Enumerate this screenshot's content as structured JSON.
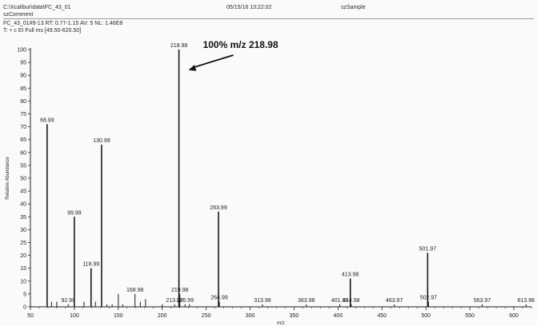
{
  "header": {
    "file_path": "C:\\Xcalibur\\data\\FC_43_01",
    "date_time": "05/15/16 13:22:02",
    "sample": "szSample",
    "comment": "szComment",
    "scan_info": "FC_43_01#9-13  RT: 0.77-1.15  AV: 5  NL: 1.46E8",
    "filter": "T: + c EI Full ms [49.50-620.50]"
  },
  "chart_data": {
    "type": "bar",
    "title": "",
    "xlabel": "m/z",
    "ylabel": "Relative Abundance",
    "xlim": [
      50,
      620
    ],
    "ylim": [
      0,
      100
    ],
    "x_ticks": [
      50,
      100,
      150,
      200,
      250,
      300,
      350,
      400,
      450,
      500,
      550,
      600
    ],
    "y_ticks": [
      0,
      5,
      10,
      15,
      20,
      25,
      30,
      35,
      40,
      45,
      50,
      55,
      60,
      65,
      70,
      75,
      80,
      85,
      90,
      95,
      100
    ],
    "annotation": "100% m/z 218.98",
    "peaks": [
      {
        "mz": 68.99,
        "intensity": 71,
        "label": "68.99"
      },
      {
        "mz": 74.0,
        "intensity": 2,
        "label": ""
      },
      {
        "mz": 80.0,
        "intensity": 2,
        "label": ""
      },
      {
        "mz": 92.99,
        "intensity": 1,
        "label": "92.99"
      },
      {
        "mz": 99.99,
        "intensity": 35,
        "label": "99.99"
      },
      {
        "mz": 111.0,
        "intensity": 2,
        "label": ""
      },
      {
        "mz": 118.99,
        "intensity": 15,
        "label": "118.99"
      },
      {
        "mz": 124.0,
        "intensity": 2,
        "label": ""
      },
      {
        "mz": 130.99,
        "intensity": 63,
        "label": "130.99"
      },
      {
        "mz": 137.0,
        "intensity": 1,
        "label": ""
      },
      {
        "mz": 143.0,
        "intensity": 1,
        "label": ""
      },
      {
        "mz": 150.0,
        "intensity": 5,
        "label": ""
      },
      {
        "mz": 155.0,
        "intensity": 1,
        "label": ""
      },
      {
        "mz": 168.98,
        "intensity": 5,
        "label": "168.98"
      },
      {
        "mz": 175.0,
        "intensity": 2,
        "label": ""
      },
      {
        "mz": 181.0,
        "intensity": 3,
        "label": ""
      },
      {
        "mz": 200.0,
        "intensity": 1,
        "label": ""
      },
      {
        "mz": 213.98,
        "intensity": 1,
        "label": "213.98"
      },
      {
        "mz": 218.98,
        "intensity": 100,
        "label": "218.98"
      },
      {
        "mz": 219.98,
        "intensity": 5,
        "label": "219.98"
      },
      {
        "mz": 225.99,
        "intensity": 1,
        "label": "225.99"
      },
      {
        "mz": 231.0,
        "intensity": 1,
        "label": ""
      },
      {
        "mz": 263.99,
        "intensity": 37,
        "label": "263.99"
      },
      {
        "mz": 264.99,
        "intensity": 2,
        "label": "264.99"
      },
      {
        "mz": 313.98,
        "intensity": 1,
        "label": "313.98"
      },
      {
        "mz": 363.98,
        "intensity": 1,
        "label": "363.98"
      },
      {
        "mz": 401.98,
        "intensity": 1,
        "label": "401.98"
      },
      {
        "mz": 413.98,
        "intensity": 11,
        "label": "413.98"
      },
      {
        "mz": 414.98,
        "intensity": 1,
        "label": "414.98"
      },
      {
        "mz": 463.97,
        "intensity": 1,
        "label": "463.97"
      },
      {
        "mz": 501.97,
        "intensity": 21,
        "label": "501.97"
      },
      {
        "mz": 502.97,
        "intensity": 2,
        "label": "502.97"
      },
      {
        "mz": 563.97,
        "intensity": 1,
        "label": "563.97"
      },
      {
        "mz": 613.96,
        "intensity": 1,
        "label": "613.96"
      }
    ],
    "colors": {
      "peak": "#1a1a1a",
      "axis": "#222222",
      "text": "#222222"
    }
  }
}
